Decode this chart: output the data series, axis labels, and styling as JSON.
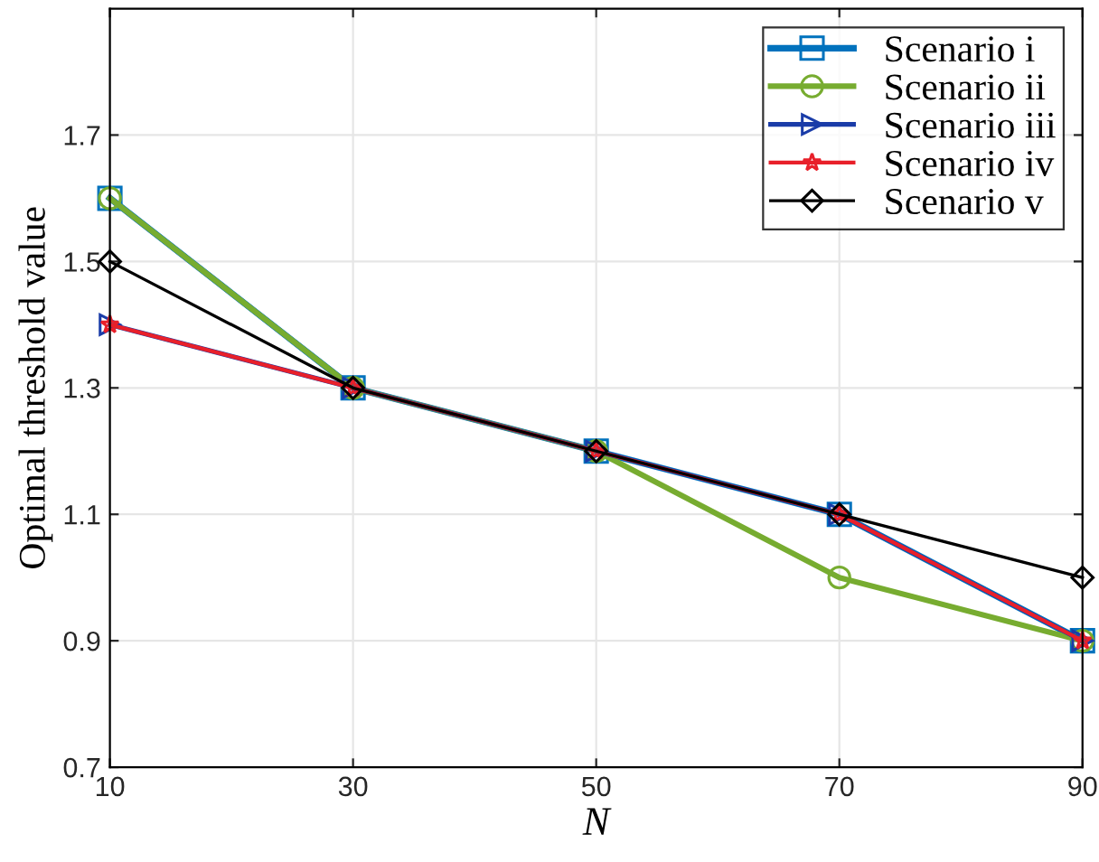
{
  "chart_data": {
    "type": "line",
    "xlabel": "N",
    "ylabel": "Optimal threshold value",
    "x": [
      10,
      30,
      50,
      70,
      90
    ],
    "series": [
      {
        "name": "Scenario i",
        "color": "#0072bd",
        "marker": "square",
        "values": [
          1.6,
          1.3,
          1.2,
          1.1,
          0.9
        ]
      },
      {
        "name": "Scenario ii",
        "color": "#77ac30",
        "marker": "circle",
        "values": [
          1.6,
          1.3,
          1.2,
          1.0,
          0.9
        ]
      },
      {
        "name": "Scenario iii",
        "color": "#1a3ca8",
        "marker": "triangle",
        "values": [
          1.4,
          1.3,
          1.2,
          1.1,
          0.9
        ]
      },
      {
        "name": "Scenario iv",
        "color": "#e8202a",
        "marker": "star",
        "values": [
          1.4,
          1.3,
          1.2,
          1.1,
          0.9
        ]
      },
      {
        "name": "Scenario v",
        "color": "#000000",
        "marker": "diamond",
        "values": [
          1.5,
          1.3,
          1.2,
          1.1,
          1.0
        ]
      }
    ],
    "xlim": [
      10,
      90
    ],
    "xticks": [
      10,
      30,
      50,
      70,
      90
    ],
    "ylim": [
      0.7,
      1.9
    ],
    "yticks": [
      0.7,
      0.9,
      1.1,
      1.3,
      1.5,
      1.7
    ],
    "grid": true,
    "legend": "top right",
    "line_style": "solid"
  }
}
